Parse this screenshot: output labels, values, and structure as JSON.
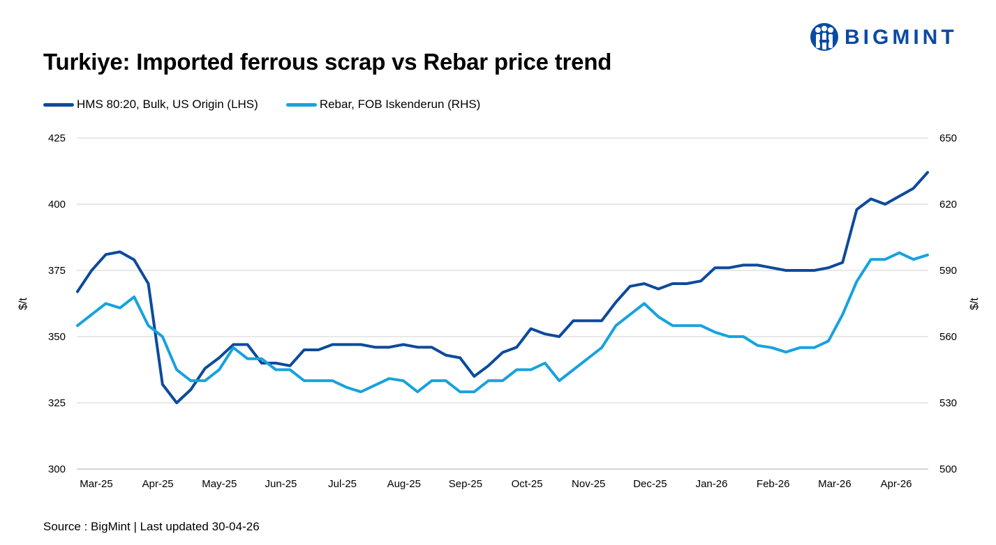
{
  "title": "Turkiye: Imported ferrous scrap vs Rebar price trend",
  "logo": {
    "text": "BIGMINT",
    "color": "#0a4aa3"
  },
  "source": "Source : BigMint | Last updated 30-04-26",
  "chart_data": {
    "type": "line",
    "title": "Turkiye: Imported ferrous scrap vs Rebar price trend",
    "grid": true,
    "legend_position": "top-left",
    "x_labels": [
      "Mar-25",
      "Apr-25",
      "May-25",
      "Jun-25",
      "Jul-25",
      "Aug-25",
      "Sep-25",
      "Oct-25",
      "Nov-25",
      "Dec-25",
      "Jan-26",
      "Feb-26",
      "Mar-26",
      "Apr-26"
    ],
    "left_axis": {
      "label": "$/t",
      "ylim": [
        300,
        425
      ],
      "ticks": [
        300,
        325,
        350,
        375,
        400,
        425
      ]
    },
    "right_axis": {
      "label": "$/t",
      "ylim": [
        500,
        650
      ],
      "ticks": [
        500,
        530,
        560,
        590,
        620,
        650
      ]
    },
    "series": [
      {
        "name": "HMS 80:20, Bulk, US Origin (LHS)",
        "axis": "left",
        "color": "#0d4a9c",
        "values": [
          367,
          375,
          381,
          382,
          379,
          370,
          332,
          325,
          330,
          338,
          342,
          347,
          347,
          340,
          340,
          339,
          345,
          345,
          347,
          347,
          347,
          346,
          346,
          347,
          346,
          346,
          343,
          342,
          335,
          339,
          344,
          346,
          353,
          351,
          350,
          356,
          356,
          356,
          363,
          369,
          370,
          368,
          370,
          370,
          371,
          376,
          376,
          377,
          377,
          376,
          375,
          375,
          375,
          376,
          378,
          398,
          402,
          400,
          403,
          406,
          412
        ]
      },
      {
        "name": "Rebar, FOB Iskenderun (RHS)",
        "axis": "right",
        "color": "#17a2de",
        "values": [
          565,
          570,
          575,
          573,
          578,
          565,
          560,
          545,
          540,
          540,
          545,
          555,
          550,
          550,
          545,
          545,
          540,
          540,
          540,
          537,
          535,
          538,
          541,
          540,
          535,
          540,
          540,
          535,
          535,
          540,
          540,
          545,
          545,
          548,
          540,
          545,
          550,
          555,
          565,
          570,
          575,
          569,
          565,
          565,
          565,
          562,
          560,
          560,
          556,
          555,
          553,
          555,
          555,
          558,
          570,
          585,
          595,
          595,
          598,
          595,
          597
        ]
      }
    ]
  }
}
